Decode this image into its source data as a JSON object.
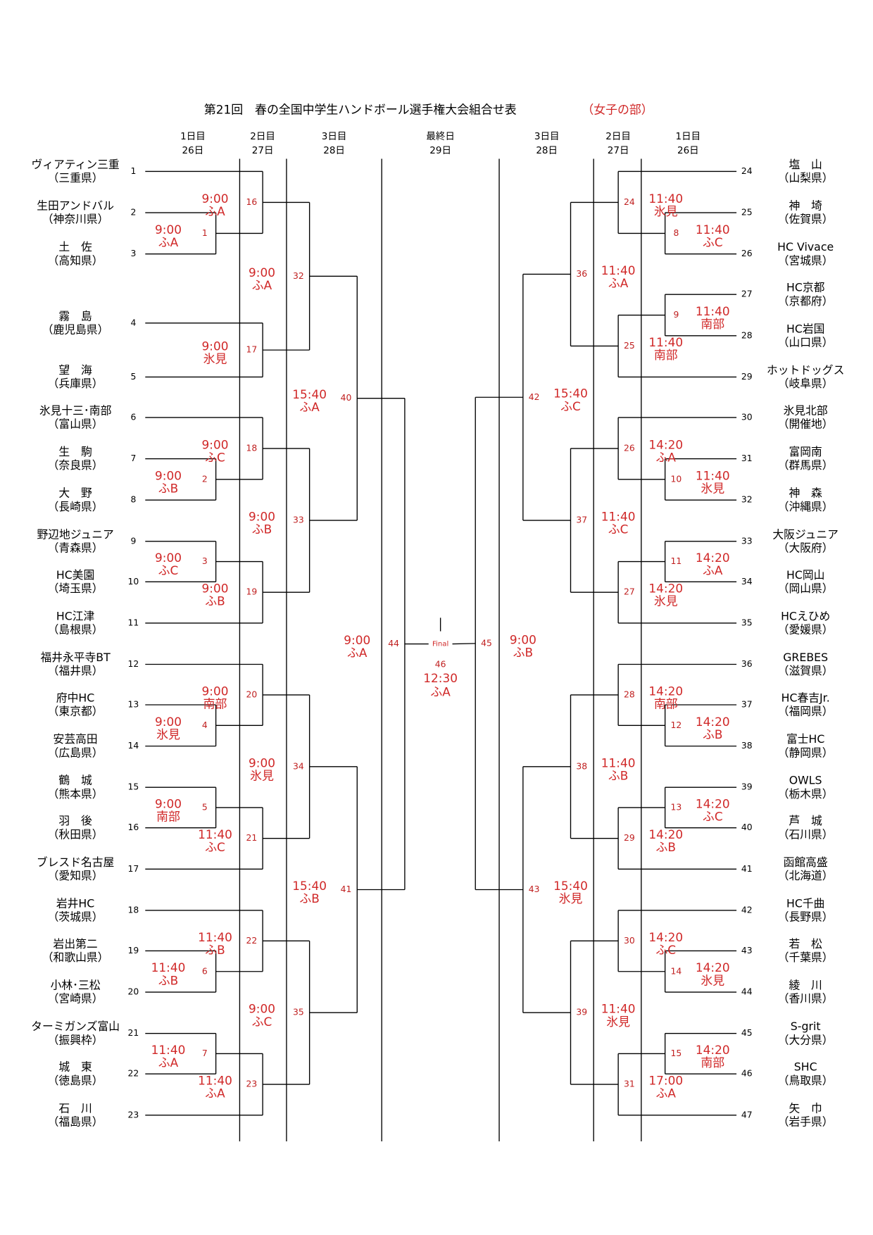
{
  "title": {
    "main": "第21回　春の全国中学生ハンドボール選手権大会組合せ表",
    "division": "（女子の部）"
  },
  "day_headers": [
    {
      "day": "1日目",
      "date": "26日"
    },
    {
      "day": "2日目",
      "date": "27日"
    },
    {
      "day": "3日目",
      "date": "28日"
    },
    {
      "day": "最終日",
      "date": "29日"
    },
    {
      "day": "3日目",
      "date": "28日"
    },
    {
      "day": "2日目",
      "date": "27日"
    },
    {
      "day": "1日目",
      "date": "26日"
    }
  ],
  "teams": [
    {
      "no": 1,
      "name": "ヴィアティン三重",
      "pref": "（三重県）"
    },
    {
      "no": 2,
      "name": "生田アンドバル",
      "pref": "（神奈川県）"
    },
    {
      "no": 3,
      "name": "土　佐",
      "pref": "（高知県）"
    },
    {
      "no": 4,
      "name": "霧　島",
      "pref": "（鹿児島県）"
    },
    {
      "no": 5,
      "name": "望　海",
      "pref": "（兵庫県）"
    },
    {
      "no": 6,
      "name": "氷見十三･南部",
      "pref": "（富山県）"
    },
    {
      "no": 7,
      "name": "生　駒",
      "pref": "（奈良県）"
    },
    {
      "no": 8,
      "name": "大　野",
      "pref": "（長崎県）"
    },
    {
      "no": 9,
      "name": "野辺地ジュニア",
      "pref": "（青森県）"
    },
    {
      "no": 10,
      "name": "HC美園",
      "pref": "（埼玉県）"
    },
    {
      "no": 11,
      "name": "HC江津",
      "pref": "（島根県）"
    },
    {
      "no": 12,
      "name": "福井永平寺BT",
      "pref": "（福井県）"
    },
    {
      "no": 13,
      "name": "府中HC",
      "pref": "（東京都）"
    },
    {
      "no": 14,
      "name": "安芸高田",
      "pref": "（広島県）"
    },
    {
      "no": 15,
      "name": "鶴　城",
      "pref": "（熊本県）"
    },
    {
      "no": 16,
      "name": "羽　後",
      "pref": "（秋田県）"
    },
    {
      "no": 17,
      "name": "ブレスド名古屋",
      "pref": "（愛知県）"
    },
    {
      "no": 18,
      "name": "岩井HC",
      "pref": "（茨城県）"
    },
    {
      "no": 19,
      "name": "岩出第二",
      "pref": "（和歌山県）"
    },
    {
      "no": 20,
      "name": "小林･三松",
      "pref": "（宮崎県）"
    },
    {
      "no": 21,
      "name": "ターミガンズ富山",
      "pref": "（振興枠）"
    },
    {
      "no": 22,
      "name": "城　東",
      "pref": "（徳島県）"
    },
    {
      "no": 23,
      "name": "石　川",
      "pref": "（福島県）"
    },
    {
      "no": 24,
      "name": "塩　山",
      "pref": "（山梨県）"
    },
    {
      "no": 25,
      "name": "神　埼",
      "pref": "（佐賀県）"
    },
    {
      "no": 26,
      "name": "HC Vivace",
      "pref": "（宮城県）"
    },
    {
      "no": 27,
      "name": "HC京都",
      "pref": "（京都府）"
    },
    {
      "no": 28,
      "name": "HC岩国",
      "pref": "（山口県）"
    },
    {
      "no": 29,
      "name": "ホットドッグス",
      "pref": "（岐阜県）"
    },
    {
      "no": 30,
      "name": "氷見北部",
      "pref": "（開催地）"
    },
    {
      "no": 31,
      "name": "富岡南",
      "pref": "（群馬県）"
    },
    {
      "no": 32,
      "name": "神　森",
      "pref": "（沖縄県）"
    },
    {
      "no": 33,
      "name": "大阪ジュニア",
      "pref": "（大阪府）"
    },
    {
      "no": 34,
      "name": "HC岡山",
      "pref": "（岡山県）"
    },
    {
      "no": 35,
      "name": "HCえひめ",
      "pref": "（愛媛県）"
    },
    {
      "no": 36,
      "name": "GREBES",
      "pref": "（滋賀県）"
    },
    {
      "no": 37,
      "name": "HC春吉Jr.",
      "pref": "（福岡県）"
    },
    {
      "no": 38,
      "name": "富士HC",
      "pref": "（静岡県）"
    },
    {
      "no": 39,
      "name": "OWLS",
      "pref": "（栃木県）"
    },
    {
      "no": 40,
      "name": "芦　城",
      "pref": "（石川県）"
    },
    {
      "no": 41,
      "name": "函館高盛",
      "pref": "（北海道）"
    },
    {
      "no": 42,
      "name": "HC千曲",
      "pref": "（長野県）"
    },
    {
      "no": 43,
      "name": "若　松",
      "pref": "（千葉県）"
    },
    {
      "no": 44,
      "name": "綾　川",
      "pref": "（香川県）"
    },
    {
      "no": 45,
      "name": "S-grit",
      "pref": "（大分県）"
    },
    {
      "no": 46,
      "name": "SHC",
      "pref": "（鳥取県）"
    },
    {
      "no": 47,
      "name": "矢　巾",
      "pref": "（岩手県）"
    }
  ],
  "matches": [
    {
      "no": 1,
      "time": "9:00",
      "venue": "ふA"
    },
    {
      "no": 2,
      "time": "9:00",
      "venue": "ふB"
    },
    {
      "no": 3,
      "time": "9:00",
      "venue": "ふC"
    },
    {
      "no": 4,
      "time": "9:00",
      "venue": "氷見"
    },
    {
      "no": 5,
      "time": "9:00",
      "venue": "南部"
    },
    {
      "no": 6,
      "time": "11:40",
      "venue": "ふB"
    },
    {
      "no": 7,
      "time": "11:40",
      "venue": "ふA"
    },
    {
      "no": 8,
      "time": "11:40",
      "venue": "ふC"
    },
    {
      "no": 9,
      "time": "11:40",
      "venue": "南部"
    },
    {
      "no": 10,
      "time": "11:40",
      "venue": "氷見"
    },
    {
      "no": 11,
      "time": "14:20",
      "venue": "ふA"
    },
    {
      "no": 12,
      "time": "14:20",
      "venue": "ふB"
    },
    {
      "no": 13,
      "time": "14:20",
      "venue": "ふC"
    },
    {
      "no": 14,
      "time": "14:20",
      "venue": "氷見"
    },
    {
      "no": 15,
      "time": "14:20",
      "venue": "南部"
    },
    {
      "no": 16,
      "time": "9:00",
      "venue": "ふA"
    },
    {
      "no": 17,
      "time": "9:00",
      "venue": "氷見"
    },
    {
      "no": 18,
      "time": "9:00",
      "venue": "ふC"
    },
    {
      "no": 19,
      "time": "9:00",
      "venue": "ふB"
    },
    {
      "no": 20,
      "time": "9:00",
      "venue": "南部"
    },
    {
      "no": 21,
      "time": "11:40",
      "venue": "ふC"
    },
    {
      "no": 22,
      "time": "11:40",
      "venue": "ふB"
    },
    {
      "no": 23,
      "time": "11:40",
      "venue": "ふA"
    },
    {
      "no": 24,
      "time": "11:40",
      "venue": "氷見"
    },
    {
      "no": 25,
      "time": "11:40",
      "venue": "南部"
    },
    {
      "no": 26,
      "time": "14:20",
      "venue": "ふA"
    },
    {
      "no": 27,
      "time": "14:20",
      "venue": "氷見"
    },
    {
      "no": 28,
      "time": "14:20",
      "venue": "南部"
    },
    {
      "no": 29,
      "time": "14:20",
      "venue": "ふB"
    },
    {
      "no": 30,
      "time": "14:20",
      "venue": "ふC"
    },
    {
      "no": 31,
      "time": "17:00",
      "venue": "ふA"
    },
    {
      "no": 32,
      "time": "9:00",
      "venue": "ふA"
    },
    {
      "no": 33,
      "time": "9:00",
      "venue": "ふB"
    },
    {
      "no": 34,
      "time": "9:00",
      "venue": "氷見"
    },
    {
      "no": 35,
      "time": "9:00",
      "venue": "ふC"
    },
    {
      "no": 36,
      "time": "11:40",
      "venue": "ふA"
    },
    {
      "no": 37,
      "time": "11:40",
      "venue": "ふC"
    },
    {
      "no": 38,
      "time": "11:40",
      "venue": "ふB"
    },
    {
      "no": 39,
      "time": "11:40",
      "venue": "氷見"
    },
    {
      "no": 40,
      "time": "15:40",
      "venue": "ふA"
    },
    {
      "no": 41,
      "time": "15:40",
      "venue": "ふB"
    },
    {
      "no": 42,
      "time": "15:40",
      "venue": "ふC"
    },
    {
      "no": 43,
      "time": "15:40",
      "venue": "氷見"
    },
    {
      "no": 44,
      "time": "9:00",
      "venue": "ふA"
    },
    {
      "no": 45,
      "time": "9:00",
      "venue": "ふB"
    }
  ],
  "final": {
    "label": "Final",
    "no": 46,
    "time": "12:30",
    "venue": "ふA"
  }
}
